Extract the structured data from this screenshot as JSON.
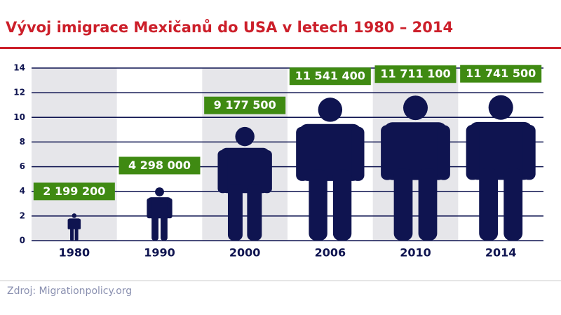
{
  "chart_data": {
    "type": "pictogram",
    "title": "Vývoj imigrace Mexičanů do USA v letech 1980 – 2014",
    "source": "Zdroj: Migrationpolicy.org",
    "categories": [
      "1980",
      "1990",
      "2000",
      "2006",
      "2010",
      "2014"
    ],
    "values": [
      2.1992,
      4.298,
      9.1775,
      11.5414,
      11.7111,
      11.7415
    ],
    "value_labels": [
      "2 199 200",
      "4 298 000",
      "9 177 500",
      "11 541 400",
      "11 711 100",
      "11 741 500"
    ],
    "color": "#0f1450",
    "label_color": "#3f8a12",
    "band_color": "#e6e6ea",
    "ylim": [
      0,
      14
    ],
    "yticks": [
      0,
      2,
      4,
      6,
      8,
      10,
      12,
      14
    ],
    "grid": true
  }
}
